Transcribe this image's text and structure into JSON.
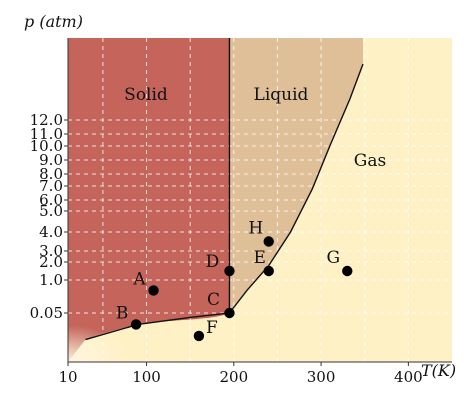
{
  "chart_data": {
    "type": "scatter",
    "title": "",
    "x_axis": {
      "label": "T(K)",
      "range": [
        10,
        450
      ],
      "ticks": [
        "10",
        "100",
        "200",
        "300",
        "400"
      ]
    },
    "y_axis": {
      "label": "p (atm)",
      "scale": "nonlinear (tick-indexed)",
      "ticks": [
        "0.05",
        "1.0",
        "2.0",
        "3.0",
        "4.0",
        "5.0",
        "6.0",
        "7.0",
        "8.0",
        "9.0",
        "10.0",
        "11.0",
        "12.0"
      ]
    },
    "grid": true,
    "regions": [
      {
        "name": "Solid",
        "label": "Solid",
        "color": "#c4645a"
      },
      {
        "name": "Liquid",
        "label": "Liquid",
        "color": "#dfbf97"
      },
      {
        "name": "Gas",
        "label": "Gas",
        "color": "#fff1c6"
      }
    ],
    "boundaries": {
      "solid_liquid_T": 195,
      "vaporization_curve": [
        {
          "T": 30,
          "p": 0.006
        },
        {
          "T": 90,
          "p": 0.02
        },
        {
          "T": 150,
          "p": 0.035
        },
        {
          "T": 195,
          "p": 0.05
        },
        {
          "T": 215,
          "p": 0.7
        },
        {
          "T": 240,
          "p": 1.8
        },
        {
          "T": 265,
          "p": 4.0
        },
        {
          "T": 290,
          "p": 6.8
        },
        {
          "T": 310,
          "p": 10.0
        },
        {
          "T": 333,
          "p": 13.5
        },
        {
          "T": 348,
          "p": 16.0
        }
      ]
    },
    "points": [
      {
        "label": "A",
        "T": 108,
        "p": 0.7
      },
      {
        "label": "B",
        "T": 88,
        "p": 0.02
      },
      {
        "label": "C",
        "T": 195,
        "p": 0.05
      },
      {
        "label": "D",
        "T": 195,
        "p": 1.5
      },
      {
        "label": "E",
        "T": 240,
        "p": 1.5
      },
      {
        "label": "F",
        "T": 160,
        "p": 0.008
      },
      {
        "label": "G",
        "T": 330,
        "p": 1.5
      },
      {
        "label": "H",
        "T": 240,
        "p": 3.5
      }
    ],
    "point_color": "#000000",
    "curve_color": "#111111"
  }
}
